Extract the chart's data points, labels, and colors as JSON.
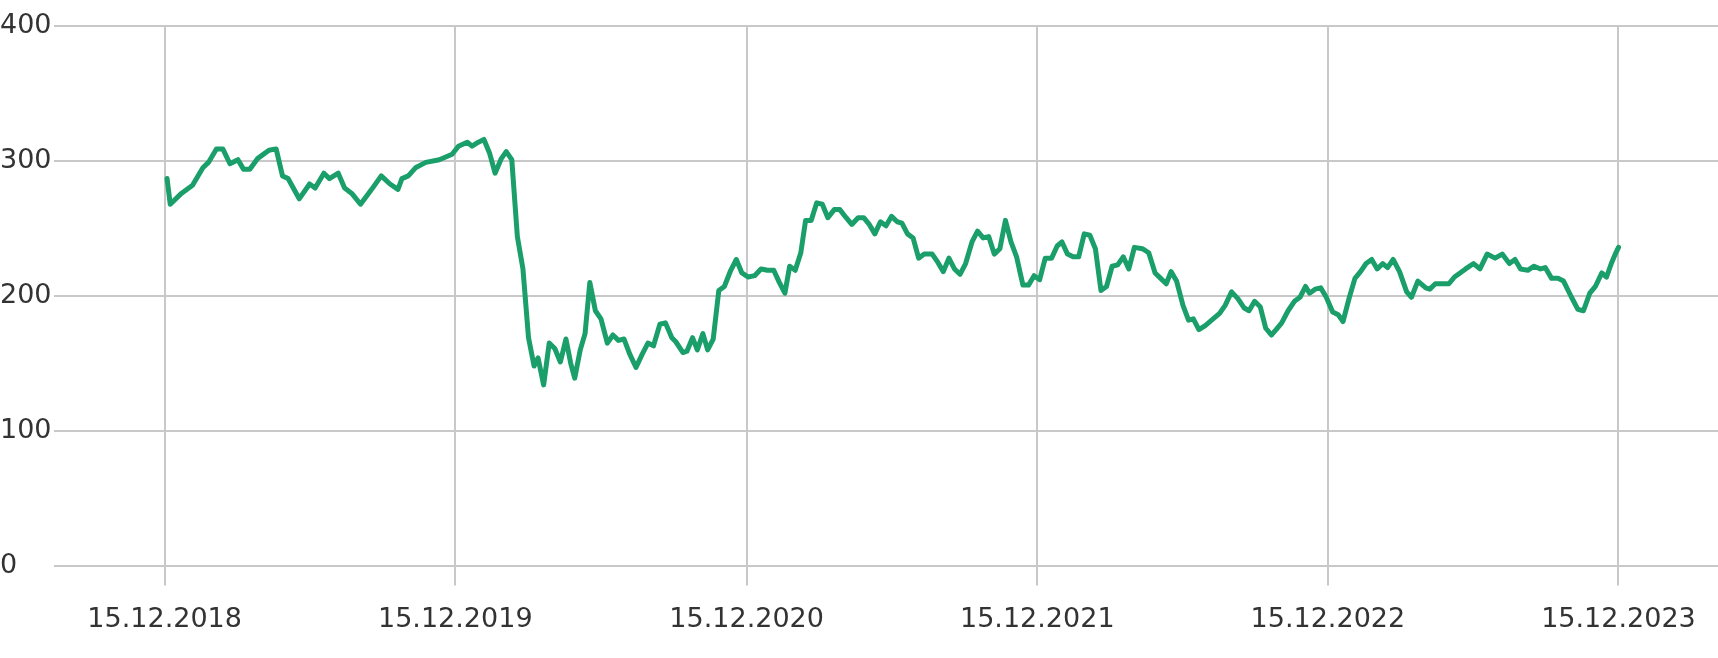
{
  "chart_data": {
    "type": "line",
    "x": [
      "2018-12-18",
      "2018-12-22",
      "2019-01-05",
      "2019-01-19",
      "2019-02-01",
      "2019-02-08",
      "2019-02-18",
      "2019-02-26",
      "2019-03-07",
      "2019-03-17",
      "2019-03-24",
      "2019-04-01",
      "2019-04-11",
      "2019-04-25",
      "2019-05-04",
      "2019-05-12",
      "2019-05-19",
      "2019-06-02",
      "2019-06-15",
      "2019-06-22",
      "2019-07-03",
      "2019-07-10",
      "2019-07-21",
      "2019-07-29",
      "2019-08-07",
      "2019-08-18",
      "2019-09-01",
      "2019-09-13",
      "2019-09-24",
      "2019-10-04",
      "2019-10-09",
      "2019-10-17",
      "2019-10-26",
      "2019-11-08",
      "2019-11-25",
      "2019-12-11",
      "2019-12-19",
      "2019-12-30",
      "2020-01-05",
      "2020-01-13",
      "2020-01-20",
      "2020-01-27",
      "2020-02-03",
      "2020-02-11",
      "2020-02-17",
      "2020-02-24",
      "2020-03-02",
      "2020-03-09",
      "2020-03-16",
      "2020-03-23",
      "2020-03-28",
      "2020-04-04",
      "2020-04-11",
      "2020-04-18",
      "2020-04-25",
      "2020-05-02",
      "2020-05-08",
      "2020-05-13",
      "2020-05-20",
      "2020-05-26",
      "2020-06-01",
      "2020-06-08",
      "2020-06-15",
      "2020-06-23",
      "2020-06-30",
      "2020-07-07",
      "2020-07-14",
      "2020-07-21",
      "2020-07-29",
      "2020-08-06",
      "2020-08-13",
      "2020-08-20",
      "2020-08-28",
      "2020-09-04",
      "2020-09-12",
      "2020-09-17",
      "2020-09-26",
      "2020-10-01",
      "2020-10-08",
      "2020-10-14",
      "2020-10-21",
      "2020-10-27",
      "2020-11-03",
      "2020-11-10",
      "2020-11-17",
      "2020-11-25",
      "2020-12-02",
      "2020-12-09",
      "2020-12-17",
      "2020-12-25",
      "2021-01-02",
      "2021-01-10",
      "2021-01-18",
      "2021-01-25",
      "2021-02-01",
      "2021-02-07",
      "2021-02-14",
      "2021-02-21",
      "2021-02-27",
      "2021-03-06",
      "2021-03-13",
      "2021-03-20",
      "2021-03-27",
      "2021-04-04",
      "2021-04-11",
      "2021-04-19",
      "2021-04-26",
      "2021-05-04",
      "2021-05-11",
      "2021-05-18",
      "2021-05-25",
      "2021-06-01",
      "2021-06-08",
      "2021-06-15",
      "2021-06-22",
      "2021-06-28",
      "2021-07-05",
      "2021-07-12",
      "2021-07-19",
      "2021-07-26",
      "2021-08-05",
      "2021-08-12",
      "2021-08-19",
      "2021-08-26",
      "2021-09-02",
      "2021-09-09",
      "2021-09-16",
      "2021-09-24",
      "2021-10-01",
      "2021-10-08",
      "2021-10-15",
      "2021-10-22",
      "2021-10-29",
      "2021-11-05",
      "2021-11-12",
      "2021-11-19",
      "2021-11-27",
      "2021-12-04",
      "2021-12-11",
      "2021-12-18",
      "2021-12-25",
      "2022-01-02",
      "2022-01-09",
      "2022-01-15",
      "2022-01-22",
      "2022-01-29",
      "2022-02-05",
      "2022-02-12",
      "2022-02-19",
      "2022-02-26",
      "2022-03-05",
      "2022-03-12",
      "2022-03-19",
      "2022-03-26",
      "2022-04-02",
      "2022-04-09",
      "2022-04-16",
      "2022-04-26",
      "2022-05-04",
      "2022-05-12",
      "2022-05-19",
      "2022-05-26",
      "2022-06-01",
      "2022-06-08",
      "2022-06-16",
      "2022-06-23",
      "2022-06-29",
      "2022-07-06",
      "2022-07-14",
      "2022-07-22",
      "2022-08-01",
      "2022-08-08",
      "2022-08-16",
      "2022-08-24",
      "2022-09-01",
      "2022-09-07",
      "2022-09-14",
      "2022-09-21",
      "2022-09-28",
      "2022-10-05",
      "2022-10-11",
      "2022-10-18",
      "2022-10-26",
      "2022-11-03",
      "2022-11-10",
      "2022-11-17",
      "2022-11-22",
      "2022-11-29",
      "2022-12-06",
      "2022-12-13",
      "2022-12-21",
      "2022-12-28",
      "2023-01-03",
      "2023-01-11",
      "2023-01-18",
      "2023-01-25",
      "2023-02-01",
      "2023-02-08",
      "2023-02-15",
      "2023-02-22",
      "2023-02-28",
      "2023-03-07",
      "2023-03-15",
      "2023-03-24",
      "2023-03-30",
      "2023-04-07",
      "2023-04-17",
      "2023-04-22",
      "2023-04-29",
      "2023-05-16",
      "2023-05-23",
      "2023-05-30",
      "2023-06-06",
      "2023-06-16",
      "2023-06-24",
      "2023-07-03",
      "2023-07-13",
      "2023-07-22",
      "2023-07-31",
      "2023-08-07",
      "2023-08-14",
      "2023-08-23",
      "2023-08-31",
      "2023-09-08",
      "2023-09-14",
      "2023-09-22",
      "2023-09-30",
      "2023-10-07",
      "2023-10-17",
      "2023-10-25",
      "2023-11-01",
      "2023-11-09",
      "2023-11-16",
      "2023-11-24",
      "2023-11-30",
      "2023-12-06",
      "2023-12-11",
      "2023-12-15"
    ],
    "series": [
      {
        "color": "#1a9e6a",
        "values": [
          287,
          268,
          276,
          282,
          295,
          299,
          309,
          309,
          298,
          301,
          294,
          294,
          302,
          308,
          309,
          289,
          287,
          272,
          283,
          280,
          291,
          287,
          291,
          280,
          276,
          268,
          279,
          289,
          283,
          279,
          287,
          289,
          295,
          299,
          301,
          305,
          311,
          314,
          311,
          314,
          316,
          306,
          291,
          302,
          307,
          301,
          244,
          220,
          169,
          148,
          154,
          134,
          165,
          161,
          151,
          168,
          150,
          139,
          160,
          172,
          210,
          189,
          183,
          165,
          171,
          167,
          168,
          157,
          147,
          157,
          165,
          163,
          179,
          180,
          169,
          166,
          158,
          159,
          169,
          160,
          172,
          160,
          168,
          204,
          207,
          219,
          227,
          217,
          214,
          215,
          220,
          219,
          219,
          210,
          202,
          222,
          219,
          232,
          256,
          256,
          269,
          268,
          258,
          264,
          264,
          258,
          253,
          258,
          258,
          253,
          246,
          255,
          252,
          259,
          255,
          254,
          246,
          243,
          228,
          231,
          231,
          225,
          218,
          228,
          220,
          216,
          224,
          240,
          248,
          243,
          244,
          231,
          235,
          256,
          240,
          229,
          208,
          208,
          215,
          212,
          228,
          228,
          237,
          240,
          231,
          229,
          229,
          246,
          245,
          235,
          204,
          207,
          222,
          223,
          229,
          220,
          236,
          235,
          232,
          217,
          213,
          209,
          218,
          211,
          193,
          182,
          183,
          175,
          178,
          182,
          187,
          193,
          203,
          198,
          191,
          189,
          196,
          192,
          176,
          171,
          175,
          180,
          189,
          196,
          199,
          207,
          202,
          205,
          206,
          199,
          188,
          186,
          181,
          199,
          213,
          218,
          224,
          227,
          220,
          224,
          221,
          227,
          218,
          203,
          199,
          211,
          206,
          205,
          209,
          209,
          214,
          217,
          220,
          224,
          220,
          231,
          228,
          231,
          224,
          227,
          220,
          219,
          222,
          220,
          221,
          213,
          213,
          211,
          199,
          190,
          189,
          202,
          207,
          217,
          214,
          224,
          231,
          236
        ]
      }
    ],
    "xlim": [
      "2018-07-29",
      "2024-04-18"
    ],
    "xticks": [
      {
        "value": "2018-12-15",
        "label": "15.12.2018"
      },
      {
        "value": "2019-12-15",
        "label": "15.12.2019"
      },
      {
        "value": "2020-12-15",
        "label": "15.12.2020"
      },
      {
        "value": "2021-12-15",
        "label": "15.12.2021"
      },
      {
        "value": "2022-12-15",
        "label": "15.12.2022"
      },
      {
        "value": "2023-12-15",
        "label": "15.12.2023"
      }
    ],
    "ylim": [
      0,
      400
    ],
    "yticks": [
      0,
      100,
      200,
      300,
      400
    ],
    "grid": true,
    "legend": false,
    "marker": "none",
    "line_style": "solid"
  }
}
